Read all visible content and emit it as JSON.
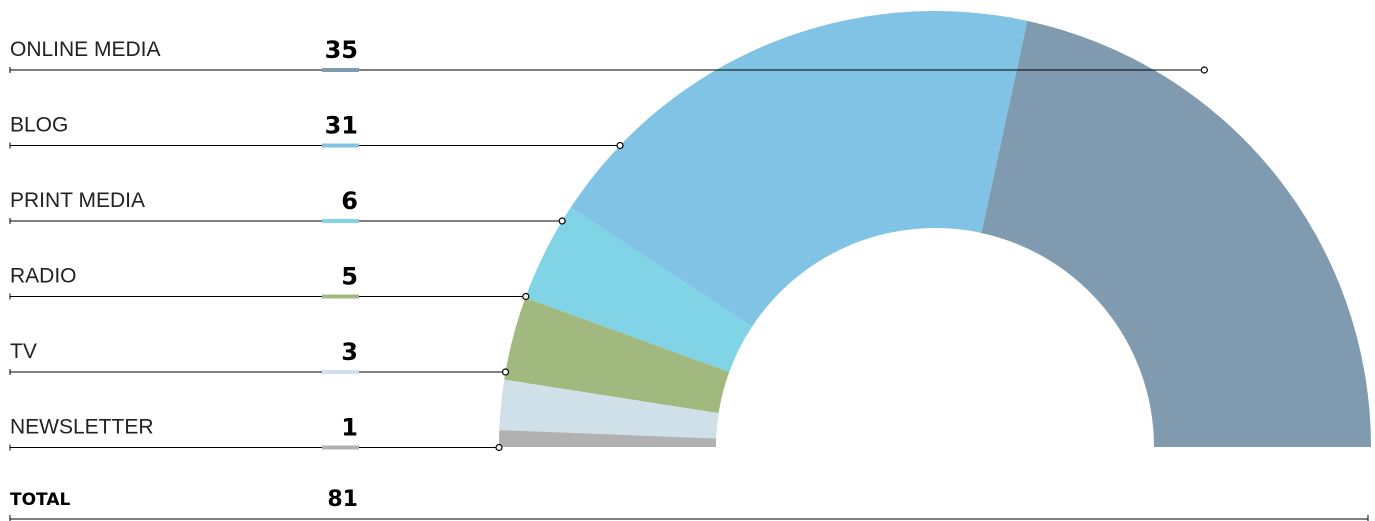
{
  "chart_data": {
    "type": "pie",
    "variant": "half-donut",
    "categories": [
      "ONLINE MEDIA",
      "BLOG",
      "PRINT MEDIA",
      "RADIO",
      "TV",
      "NEWSLETTER"
    ],
    "values": [
      35,
      31,
      6,
      5,
      3,
      1
    ],
    "colors": [
      "#809bb0",
      "#80c3e4",
      "#80d4e6",
      "#a1b87f",
      "#cfe0e8",
      "#b1b1b1"
    ],
    "total": {
      "label": "TOTAL",
      "value": 81
    }
  }
}
